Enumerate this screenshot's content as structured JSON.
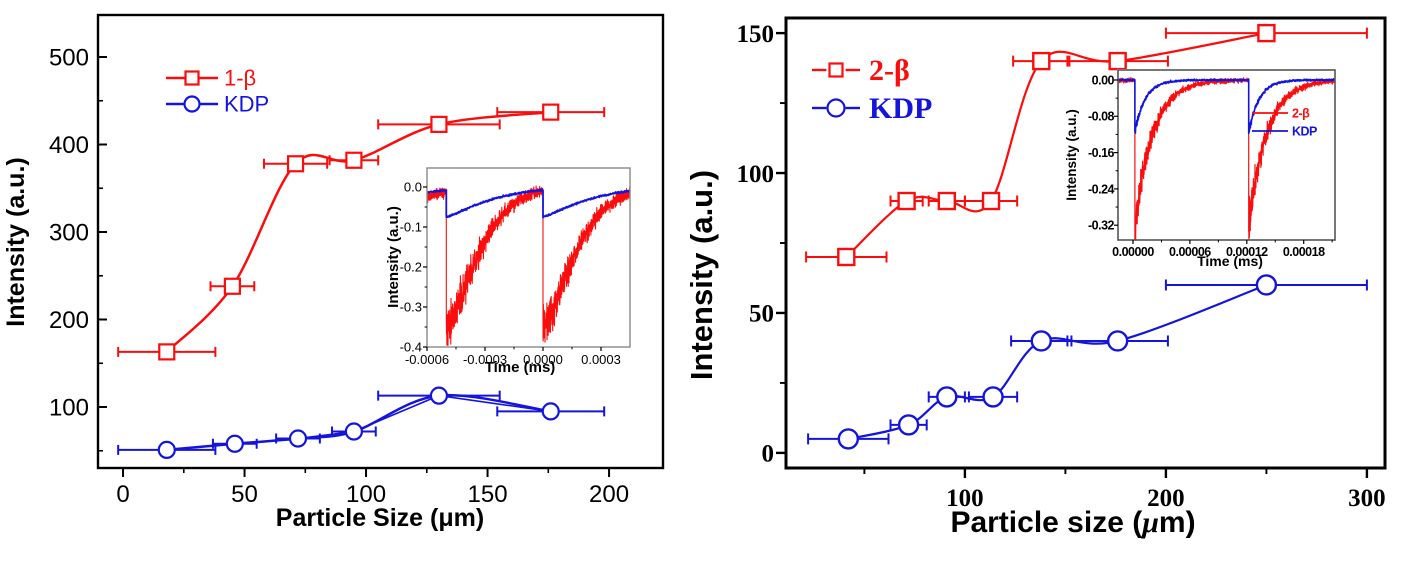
{
  "figure": {
    "background": "#ffffff",
    "description": "Two-panel figure: SHG intensity versus particle size with photoresponse time-trace insets"
  },
  "colors": {
    "red": "#fb0d0d",
    "blue": "#1414dd",
    "axis": "#000000",
    "inset_frame_left": "#888888",
    "inset_frame_right": "#555555"
  },
  "chart_data": [
    {
      "id": "left-panel",
      "type": "scatter",
      "xlabel": "Particle Size (μm)",
      "ylabel": "Intensity (a.u.)",
      "xlim": [
        -10.3,
        222.2
      ],
      "ylim": [
        30.3,
        548
      ],
      "xticks": [
        0,
        50,
        100,
        150,
        200
      ],
      "xminor": [
        25,
        75,
        125,
        175
      ],
      "yticks": [
        100,
        200,
        300,
        400,
        500
      ],
      "yminor": [
        50,
        150,
        250,
        350,
        450
      ],
      "grid": false,
      "legend": [
        {
          "label": "1-β",
          "color": "#fb0d0d",
          "marker": "square"
        },
        {
          "label": "KDP",
          "color": "#1414dd",
          "marker": "circle"
        }
      ],
      "series": [
        {
          "name": "1-β",
          "color": "#fb0d0d",
          "marker": "square",
          "points": [
            [
              18,
              163,
              20
            ],
            [
              45,
              238,
              9
            ],
            [
              71,
              378,
              13
            ],
            [
              95,
              382,
              10
            ],
            [
              130,
              423,
              25
            ],
            [
              176,
              437,
              22
            ]
          ]
        },
        {
          "name": "KDP",
          "color": "#1414dd",
          "marker": "circle",
          "extra_polyline": true,
          "points": [
            [
              18,
              51,
              20
            ],
            [
              46,
              58,
              9
            ],
            [
              72,
              64,
              9
            ],
            [
              95,
              72,
              9
            ],
            [
              130,
              113,
              25
            ],
            [
              176,
              95,
              22
            ]
          ]
        }
      ],
      "inset": {
        "xlabel": "Time (ms)",
        "ylabel": "Intensity (a.u.)",
        "xlim": [
          -0.0006,
          0.00045
        ],
        "ylim": [
          -0.4,
          0.0475
        ],
        "xtick_values": [
          -0.0006,
          -0.0003,
          0.0,
          0.0003
        ],
        "xtick_labels": [
          "-0.0006",
          "-0.0003",
          "0.0000",
          "0.0003"
        ],
        "xminor": [
          -0.00045,
          -0.00015,
          0.00015
        ],
        "ytick_values": [
          0,
          -0.1,
          -0.2,
          -0.3,
          -0.4
        ],
        "ytick_labels": [
          "0.0",
          "-0.1",
          "-0.2",
          "-0.3",
          "-0.4"
        ],
        "yminor": [
          -0.05,
          -0.15,
          -0.25,
          -0.35
        ],
        "series": [
          {
            "name": "1-β",
            "color": "#fb0d0d",
            "drop_times": [
              -0.0005,
              0.0
            ],
            "depth": -0.345,
            "tau": 0.00021,
            "beta": 1.45,
            "noise": 0.011,
            "noise_scale": 0.1,
            "seed": 11,
            "samples": 1500,
            "width": 1.1
          },
          {
            "name": "KDP",
            "color": "#1414dd",
            "drop_times": [
              -0.0005,
              0.0
            ],
            "depth": -0.075,
            "tau": 0.00026,
            "beta": 1.25,
            "noise": 0.002,
            "noise_scale": 0.0,
            "seed": 5,
            "samples": 700,
            "width": 1.8
          }
        ]
      }
    },
    {
      "id": "right-panel",
      "type": "scatter",
      "xlabel": "Particle size (μm)",
      "ylabel": "Intensity (a.u.)",
      "xlim": [
        11,
        309
      ],
      "ylim": [
        -5.4,
        155.4
      ],
      "xticks": [
        100,
        200,
        300
      ],
      "xminor": [
        50,
        150,
        250
      ],
      "yticks": [
        0,
        50,
        100,
        150
      ],
      "yminor": [
        25,
        75,
        125
      ],
      "grid": false,
      "legend": [
        {
          "label": "2-β",
          "color": "#fb0d0d",
          "marker": "square"
        },
        {
          "label": "KDP",
          "color": "#1414dd",
          "marker": "circle"
        }
      ],
      "series": [
        {
          "name": "2-β",
          "color": "#fb0d0d",
          "marker": "square",
          "points": [
            [
              41,
              70,
              20
            ],
            [
              71,
              90,
              8
            ],
            [
              91,
              90,
              9
            ],
            [
              113,
              90,
              13
            ],
            [
              138,
              140,
              14
            ],
            [
              176,
              140,
              25
            ],
            [
              250,
              150,
              50
            ]
          ]
        },
        {
          "name": "KDP",
          "color": "#1414dd",
          "marker": "circle",
          "points": [
            [
              42,
              5,
              20
            ],
            [
              72,
              10,
              9
            ],
            [
              91,
              20,
              9
            ],
            [
              114,
              20,
              12
            ],
            [
              138,
              40,
              15
            ],
            [
              176,
              40,
              25
            ],
            [
              250,
              60,
              50
            ]
          ]
        }
      ],
      "inset": {
        "xlabel": "Time (ms)",
        "ylabel": "Intensity (a.u.)",
        "xlim": [
          -1.58e-05,
          0.000213
        ],
        "ylim": [
          -0.3526,
          0.022
        ],
        "xtick_values": [
          0,
          6e-05,
          0.00012,
          0.00018
        ],
        "xtick_labels": [
          "0.00000",
          "0.00006",
          "0.00012",
          "0.00018"
        ],
        "xminor": [
          3e-05,
          9e-05,
          0.00015,
          0.00021
        ],
        "ytick_values": [
          0,
          -0.08,
          -0.16,
          -0.24,
          -0.32
        ],
        "ytick_labels": [
          "0.00",
          "-0.08",
          "-0.16",
          "-0.24",
          "-0.32"
        ],
        "yminor": [
          -0.04,
          -0.12,
          -0.2,
          -0.28
        ],
        "legend": [
          {
            "label": "2-β",
            "color": "#fb0d0d"
          },
          {
            "label": "KDP",
            "color": "#1414dd"
          }
        ],
        "series": [
          {
            "name": "2-β",
            "color": "#fb0d0d",
            "drop_times": [
              2e-06,
              0.000122
            ],
            "depth": -0.32,
            "tau": 1.9e-05,
            "beta": 1.0,
            "noise": 0.004,
            "noise_scale": 0.12,
            "seed": 3,
            "samples": 1500,
            "width": 1.2
          },
          {
            "name": "KDP",
            "color": "#1414dd",
            "drop_times": [
              2e-06,
              0.000122
            ],
            "depth": -0.115,
            "tau": 1.1e-05,
            "beta": 1.0,
            "noise": 0.0018,
            "noise_scale": 0.05,
            "seed": 9,
            "samples": 900,
            "width": 1.6
          }
        ]
      }
    }
  ]
}
